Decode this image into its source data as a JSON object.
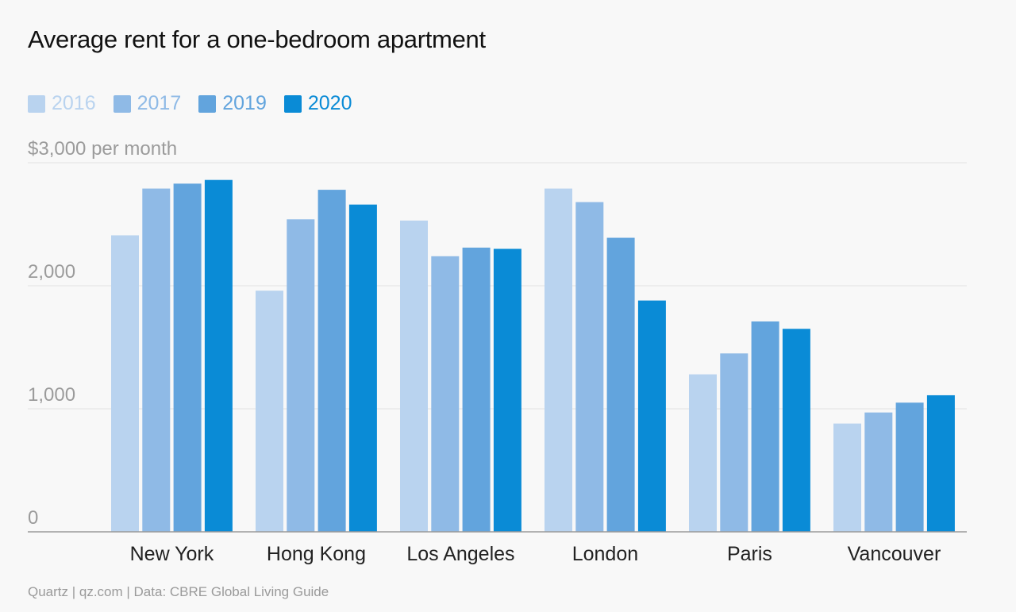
{
  "chart_data": {
    "type": "bar",
    "title": "Average rent for a one-bedroom apartment",
    "ylabel": "$3,000 per month",
    "ylim": [
      0,
      3000
    ],
    "ticks": [
      {
        "value": 0,
        "label": "0"
      },
      {
        "value": 1000,
        "label": "1,000"
      },
      {
        "value": 2000,
        "label": "2,000"
      },
      {
        "value": 3000,
        "label": "$3,000 per month"
      }
    ],
    "grid": true,
    "legend_position": "top-left",
    "categories": [
      "New York",
      "Hong Kong",
      "Los Angeles",
      "London",
      "Paris",
      "Vancouver"
    ],
    "series": [
      {
        "name": "2016",
        "color": "#b9d3ef",
        "values": [
          2410,
          1960,
          2530,
          2790,
          1280,
          880
        ]
      },
      {
        "name": "2017",
        "color": "#8fbae6",
        "values": [
          2790,
          2540,
          2240,
          2680,
          1450,
          970
        ]
      },
      {
        "name": "2019",
        "color": "#62a4dd",
        "values": [
          2830,
          2780,
          2310,
          2390,
          1710,
          1050
        ]
      },
      {
        "name": "2020",
        "color": "#0a8bd6",
        "values": [
          2860,
          2660,
          2300,
          1880,
          1650,
          1110
        ]
      }
    ]
  },
  "source": "Quartz | qz.com | Data: CBRE Global Living Guide"
}
